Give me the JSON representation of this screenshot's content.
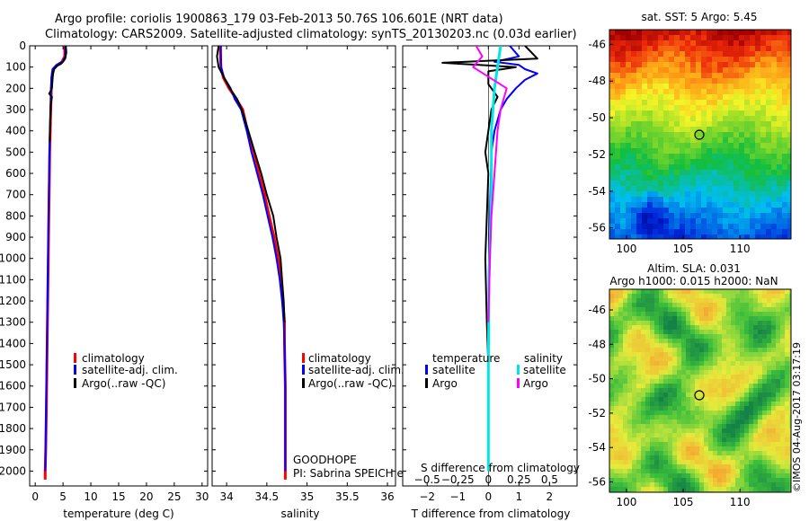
{
  "header": {
    "title_line1": "Argo profile: coriolis 1900863_179 03-Feb-2013 50.76S 106.601E (NRT data)",
    "title_line2": "Climatology: CARS2009. Satellite-adjusted climatology: synTS_20130203.nc (0.03d earlier)"
  },
  "colors": {
    "climatology": "#ff0000",
    "satellite_adj": "#0000ff",
    "argo": "#000000",
    "salinity_satellite": "#00e5e5",
    "salinity_argo": "#ff00ff"
  },
  "chart_data": [
    {
      "id": "temperature",
      "type": "line",
      "xlabel": "temperature (deg C)",
      "ylabel": "",
      "xlim": [
        -1,
        31
      ],
      "ylim": [
        2070,
        0
      ],
      "xticks": [
        0,
        5,
        10,
        15,
        20,
        25,
        30
      ],
      "yticks": [
        0,
        100,
        200,
        300,
        400,
        500,
        600,
        700,
        800,
        900,
        1000,
        1100,
        1200,
        1300,
        1400,
        1500,
        1600,
        1700,
        1800,
        1900,
        2000
      ],
      "legend": [
        "climatology",
        "satellite-adj. clim.",
        "Argo(..raw -QC)"
      ],
      "series": [
        {
          "name": "climatology",
          "color": "#ff0000",
          "width": 3,
          "points": [
            [
              5.3,
              0
            ],
            [
              5.3,
              50
            ],
            [
              4.8,
              75
            ],
            [
              4.0,
              90
            ],
            [
              3.3,
              110
            ],
            [
              3.0,
              150
            ],
            [
              2.9,
              200
            ],
            [
              2.8,
              300
            ],
            [
              2.7,
              400
            ],
            [
              2.6,
              500
            ],
            [
              2.5,
              700
            ],
            [
              2.4,
              900
            ],
            [
              2.3,
              1100
            ],
            [
              2.2,
              1300
            ],
            [
              2.1,
              1500
            ],
            [
              2.0,
              1700
            ],
            [
              1.9,
              1900
            ],
            [
              1.8,
              2000
            ],
            [
              1.8,
              2040
            ]
          ]
        },
        {
          "name": "satellite-adj. clim.",
          "color": "#0000ff",
          "width": 2,
          "points": [
            [
              5.4,
              0
            ],
            [
              5.4,
              50
            ],
            [
              4.9,
              75
            ],
            [
              3.8,
              90
            ],
            [
              3.1,
              110
            ],
            [
              2.9,
              150
            ],
            [
              2.85,
              200
            ],
            [
              2.75,
              300
            ],
            [
              2.65,
              400
            ],
            [
              2.55,
              500
            ],
            [
              2.45,
              700
            ],
            [
              2.35,
              900
            ],
            [
              2.25,
              1100
            ],
            [
              2.15,
              1300
            ],
            [
              2.05,
              1500
            ],
            [
              1.95,
              1700
            ],
            [
              1.85,
              1900
            ],
            [
              1.8,
              2000
            ]
          ]
        },
        {
          "name": "Argo(..raw -QC)",
          "color": "#000000",
          "width": 2,
          "points": [
            [
              5.5,
              0
            ],
            [
              5.6,
              30
            ],
            [
              5.4,
              60
            ],
            [
              5.0,
              75
            ],
            [
              4.6,
              85
            ],
            [
              3.9,
              95
            ],
            [
              3.4,
              110
            ],
            [
              3.2,
              130
            ],
            [
              3.1,
              160
            ],
            [
              3.0,
              200
            ],
            [
              2.5,
              225
            ],
            [
              3.0,
              240
            ],
            [
              2.8,
              280
            ],
            [
              2.7,
              350
            ],
            [
              2.6,
              450
            ]
          ]
        }
      ]
    },
    {
      "id": "salinity",
      "type": "line",
      "xlabel": "salinity",
      "ylabel": "",
      "xlim": [
        33.82,
        36.1
      ],
      "ylim": [
        2070,
        0
      ],
      "xticks": [
        34,
        34.5,
        35,
        35.5,
        36
      ],
      "legend": [
        "climatology",
        "satellite-adj. clim.",
        "Argo(..raw -QC)"
      ],
      "annotation_line1": "GOODHOPE",
      "annotation_line2": "PI: Sabrina SPEICH et Michel ARHAN",
      "series": [
        {
          "name": "climatology",
          "color": "#ff0000",
          "width": 3,
          "points": [
            [
              33.92,
              0
            ],
            [
              33.93,
              100
            ],
            [
              33.96,
              150
            ],
            [
              34.03,
              200
            ],
            [
              34.12,
              250
            ],
            [
              34.2,
              300
            ],
            [
              34.26,
              400
            ],
            [
              34.34,
              500
            ],
            [
              34.4,
              600
            ],
            [
              34.47,
              700
            ],
            [
              34.53,
              800
            ],
            [
              34.59,
              900
            ],
            [
              34.64,
              1000
            ],
            [
              34.68,
              1100
            ],
            [
              34.7,
              1200
            ],
            [
              34.72,
              1300
            ],
            [
              34.72,
              1400
            ],
            [
              34.73,
              1600
            ],
            [
              34.73,
              1800
            ],
            [
              34.73,
              2000
            ],
            [
              34.73,
              2040
            ]
          ]
        },
        {
          "name": "satellite-adj. clim.",
          "color": "#0000ff",
          "width": 2,
          "points": [
            [
              33.93,
              0
            ],
            [
              33.93,
              100
            ],
            [
              33.97,
              150
            ],
            [
              34.05,
              200
            ],
            [
              34.1,
              250
            ],
            [
              34.18,
              300
            ],
            [
              34.25,
              400
            ],
            [
              34.31,
              500
            ],
            [
              34.38,
              600
            ],
            [
              34.45,
              700
            ],
            [
              34.51,
              800
            ],
            [
              34.57,
              900
            ],
            [
              34.62,
              1000
            ],
            [
              34.66,
              1100
            ],
            [
              34.69,
              1200
            ],
            [
              34.71,
              1300
            ],
            [
              34.72,
              1400
            ],
            [
              34.73,
              1600
            ],
            [
              34.73,
              1800
            ],
            [
              34.73,
              2000
            ]
          ]
        },
        {
          "name": "Argo(..raw -QC)",
          "color": "#000000",
          "width": 2,
          "points": [
            [
              33.9,
              0
            ],
            [
              33.88,
              50
            ],
            [
              33.9,
              100
            ],
            [
              33.97,
              150
            ],
            [
              34.04,
              200
            ],
            [
              34.13,
              250
            ],
            [
              34.19,
              300
            ],
            [
              34.27,
              400
            ],
            [
              34.35,
              500
            ],
            [
              34.43,
              600
            ],
            [
              34.5,
              700
            ],
            [
              34.58,
              800
            ],
            [
              34.62,
              900
            ],
            [
              34.67,
              1000
            ],
            [
              34.69,
              1100
            ],
            [
              34.71,
              1200
            ],
            [
              34.72,
              1300
            ]
          ]
        }
      ]
    },
    {
      "id": "difference",
      "type": "line",
      "xlabel": "T difference from climatology",
      "xlabel_top": "S difference from climatology",
      "ylabel": "",
      "xlim": [
        -2.8,
        2.9
      ],
      "ylim": [
        2070,
        0
      ],
      "xticks": [
        -2,
        -1,
        0,
        1,
        2
      ],
      "xticks_labels": [
        "−2",
        "−1",
        "0",
        "1",
        "2"
      ],
      "s_xticks_labels": [
        "−0.5",
        "−0.25",
        "0",
        "0.25",
        "0.5"
      ],
      "legend_headers": [
        "temperature",
        "salinity"
      ],
      "legend": [
        "satellite",
        "Argo",
        "satellite",
        "Argo"
      ],
      "series": [
        {
          "name": "satellite",
          "color": "#0000ff",
          "width": 2,
          "points": [
            [
              0.7,
              0
            ],
            [
              1.0,
              50
            ],
            [
              0.2,
              75
            ],
            [
              1.0,
              90
            ],
            [
              1.2,
              110
            ],
            [
              1.6,
              130
            ],
            [
              1.2,
              160
            ],
            [
              0.9,
              200
            ],
            [
              0.6,
              250
            ],
            [
              0.4,
              300
            ],
            [
              0.2,
              400
            ],
            [
              0.1,
              500
            ],
            [
              0.05,
              800
            ],
            [
              0.02,
              1000
            ],
            [
              0.0,
              1400
            ],
            [
              0.0,
              2000
            ]
          ]
        },
        {
          "name": "Argo",
          "color": "#000000",
          "width": 2,
          "points": [
            [
              1.2,
              0
            ],
            [
              1.6,
              60
            ],
            [
              0.0,
              70
            ],
            [
              -1.5,
              80
            ],
            [
              -0.3,
              90
            ],
            [
              0.9,
              100
            ],
            [
              0.0,
              120
            ],
            [
              0.0,
              180
            ],
            [
              0.3,
              240
            ],
            [
              0.1,
              300
            ],
            [
              0.0,
              400
            ],
            [
              -0.1,
              500
            ],
            [
              0.0,
              600
            ],
            [
              -0.05,
              800
            ],
            [
              -0.1,
              1000
            ],
            [
              -0.05,
              1300
            ],
            [
              0.0,
              1500
            ]
          ]
        },
        {
          "name": "satellite",
          "color": "#00e5e5",
          "width": 3,
          "points": [
            [
              0.4,
              0
            ],
            [
              0.3,
              100
            ],
            [
              0.2,
              200
            ],
            [
              0.1,
              400
            ],
            [
              0.1,
              700
            ],
            [
              0.02,
              1100
            ],
            [
              0.0,
              1500
            ],
            [
              0.0,
              2000
            ]
          ]
        },
        {
          "name": "Argo",
          "color": "#ff00ff",
          "width": 2,
          "points": [
            [
              -0.4,
              0
            ],
            [
              -0.2,
              50
            ],
            [
              -0.5,
              100
            ],
            [
              0.6,
              200
            ],
            [
              0.4,
              300
            ],
            [
              0.3,
              400
            ],
            [
              0.2,
              600
            ],
            [
              0.1,
              800
            ],
            [
              0.05,
              1000
            ],
            [
              0.0,
              1300
            ]
          ]
        }
      ]
    },
    {
      "id": "sst_map",
      "type": "heatmap",
      "title": "sat. SST: 5 Argo: 5.45",
      "xlim": [
        98.5,
        114.5
      ],
      "ylim": [
        -56.6,
        -45.2
      ],
      "xticks": [
        100,
        105,
        110
      ],
      "yticks": [
        -46,
        -48,
        -50,
        -52,
        -54,
        -56
      ],
      "marker": {
        "lon": 106.6,
        "lat": -50.76
      }
    },
    {
      "id": "sla_map",
      "type": "heatmap",
      "title_line1": "Altim. SLA: 0.031",
      "title_line2": "Argo h1000: 0.015 h2000: NaN",
      "xlim": [
        98.5,
        114.5
      ],
      "ylim": [
        -56.6,
        -44.8
      ],
      "xticks": [
        100,
        105,
        110
      ],
      "yticks": [
        -46,
        -48,
        -50,
        -52,
        -54,
        -56
      ],
      "marker": {
        "lon": 106.6,
        "lat": -50.76
      }
    }
  ],
  "footer": {
    "credit": "©IMOS 04-Aug-2017 03:17:19"
  }
}
